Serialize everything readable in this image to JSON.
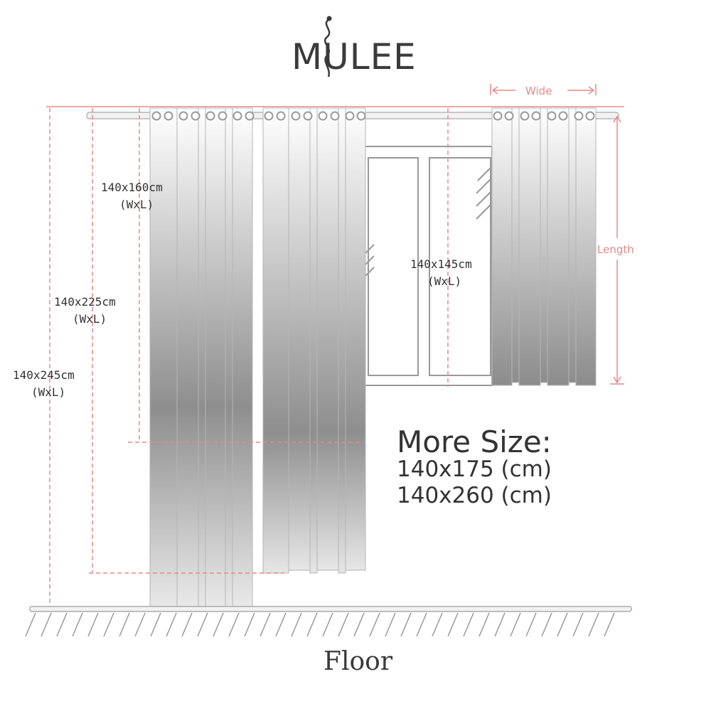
{
  "brand": {
    "logo_text": "MULEE"
  },
  "dimension_labels": {
    "wide": "Wide",
    "length": "Length"
  },
  "sizes": [
    {
      "size": "140x160cm",
      "note": "(WxL)"
    },
    {
      "size": "140x225cm",
      "note": "(WxL)"
    },
    {
      "size": "140x245cm",
      "note": "(WxL)"
    },
    {
      "size": "140x145cm",
      "note": "(WxL)"
    }
  ],
  "more_sizes": {
    "title": "More Size:",
    "items": [
      "140x175 (cm)",
      "140x260 (cm)"
    ]
  },
  "floor_label": "Floor",
  "colors": {
    "dimension_line": "#e58a8a",
    "curtain_dark": "#8a8a8a",
    "curtain_light": "#f4f4f4",
    "outline": "#b5b5b5"
  },
  "icons": [
    "snake-logo-icon"
  ]
}
